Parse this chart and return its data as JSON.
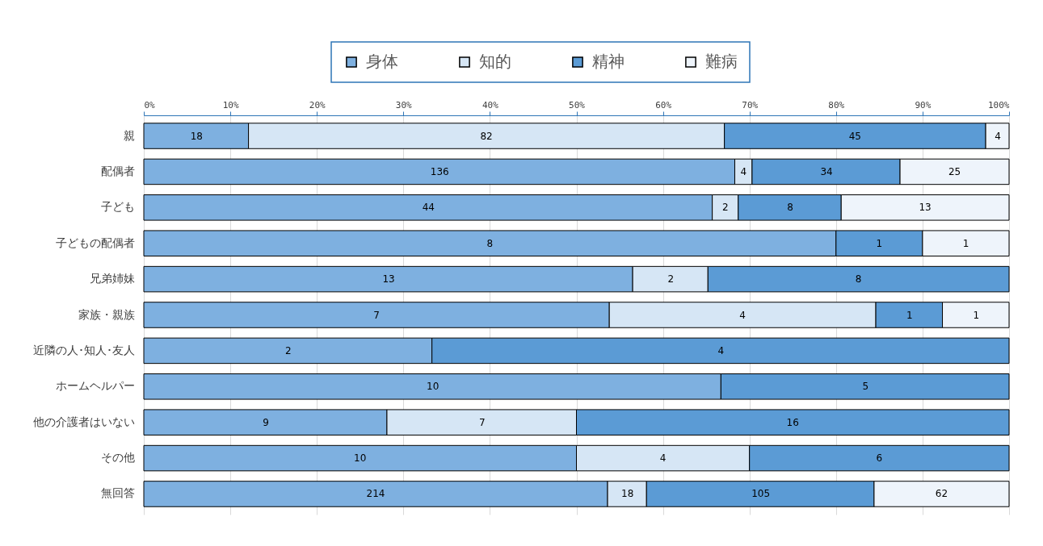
{
  "chart_data": {
    "type": "bar",
    "orientation": "horizontal",
    "stacked": true,
    "categories": [
      "親",
      "配偶者",
      "子ども",
      "子どもの配偶者",
      "兄弟姉妹",
      "家族・親族",
      "近隣の人･知人･友人",
      "ホームヘルパー",
      "他の介護者はいない",
      "その他",
      "無回答"
    ],
    "series": [
      {
        "name": "身体",
        "color": "#7eb0e0",
        "values": [
          12.1,
          68.3,
          65.7,
          80,
          56.5,
          53.8,
          33.3,
          66.7,
          28.1,
          50,
          53.6
        ]
      },
      {
        "name": "知的",
        "color": "#d6e6f5",
        "values": [
          55.0,
          2.0,
          3.0,
          null,
          8.7,
          30.8,
          null,
          null,
          21.9,
          20,
          4.5
        ]
      },
      {
        "name": "精神",
        "color": "#5b9bd5",
        "values": [
          30.2,
          17.1,
          11.9,
          10,
          34.8,
          7.7,
          66.7,
          33.3,
          50,
          30,
          26.3
        ]
      },
      {
        "name": "難病",
        "color": "#eef4fb",
        "values": [
          2.7,
          12.6,
          19.4,
          10,
          null,
          7.7,
          null,
          null,
          null,
          null,
          15.6
        ]
      }
    ],
    "annotations": [
      {
        "text": "18",
        "x": 6.1,
        "y": "親"
      },
      {
        "text": "82",
        "x": 39.6,
        "y": "親"
      },
      {
        "text": "45",
        "x": 82.2,
        "y": "親"
      },
      {
        "text": "4",
        "x": 98.7,
        "y": "親"
      },
      {
        "text": "136",
        "x": 34.2,
        "y": "配偶者"
      },
      {
        "text": "4",
        "x": 69.3,
        "y": "配偶者"
      },
      {
        "text": "34",
        "x": 78.9,
        "y": "配偶者"
      },
      {
        "text": "25",
        "x": 93.7,
        "y": "配偶者"
      },
      {
        "text": "44",
        "x": 32.9,
        "y": "子ども"
      },
      {
        "text": "2",
        "x": 67.2,
        "y": "子ども"
      },
      {
        "text": "8",
        "x": 74.7,
        "y": "子ども"
      },
      {
        "text": "13",
        "x": 90.3,
        "y": "子ども"
      },
      {
        "text": "8",
        "x": 40,
        "y": "子どもの配偶者"
      },
      {
        "text": "1",
        "x": 85,
        "y": "子どもの配偶者"
      },
      {
        "text": "1",
        "x": 95,
        "y": "子どもの配偶者"
      },
      {
        "text": "13",
        "x": 28.3,
        "y": "兄弟姉妹"
      },
      {
        "text": "2",
        "x": 60.9,
        "y": "兄弟姉妹"
      },
      {
        "text": "8",
        "x": 82.6,
        "y": "兄弟姉妹"
      },
      {
        "text": "7",
        "x": 26.9,
        "y": "家族・親族"
      },
      {
        "text": "4",
        "x": 69.2,
        "y": "家族・親族"
      },
      {
        "text": "1",
        "x": 88.5,
        "y": "家族・親族"
      },
      {
        "text": "1",
        "x": 96.2,
        "y": "家族・親族"
      },
      {
        "text": "2",
        "x": 16.7,
        "y": "近隣の人･知人･友人"
      },
      {
        "text": "4",
        "x": 66.7,
        "y": "近隣の人･知人･友人"
      },
      {
        "text": "10",
        "x": 33.4,
        "y": "ホームヘルパー"
      },
      {
        "text": "5",
        "x": 83.4,
        "y": "ホームヘルパー"
      },
      {
        "text": "9",
        "x": 14.1,
        "y": "他の介護者はいない"
      },
      {
        "text": "7",
        "x": 39.1,
        "y": "他の介護者はいない"
      },
      {
        "text": "16",
        "x": 75,
        "y": "他の介護者はいない"
      },
      {
        "text": "10",
        "x": 25,
        "y": "その他"
      },
      {
        "text": "4",
        "x": 60,
        "y": "その他"
      },
      {
        "text": "6",
        "x": 85,
        "y": "その他"
      },
      {
        "text": "214",
        "x": 26.8,
        "y": "無回答"
      },
      {
        "text": "18",
        "x": 55.9,
        "y": "無回答"
      },
      {
        "text": "105",
        "x": 71.3,
        "y": "無回答"
      },
      {
        "text": "62",
        "x": 92.2,
        "y": "無回答"
      }
    ],
    "xlim": [
      0,
      100
    ],
    "xticks": [
      {
        "value": 0,
        "label": "0%"
      },
      {
        "value": 10,
        "label": "10%"
      },
      {
        "value": 20,
        "label": "20%"
      },
      {
        "value": 30,
        "label": "30%"
      },
      {
        "value": 40,
        "label": "40%"
      },
      {
        "value": 50,
        "label": "50%"
      },
      {
        "value": 60,
        "label": "60%"
      },
      {
        "value": 70,
        "label": "70%"
      },
      {
        "value": 80,
        "label": "80%"
      },
      {
        "value": 90,
        "label": "90%"
      },
      {
        "value": 100,
        "label": "100%"
      }
    ],
    "grid": "x",
    "legend": "top"
  }
}
